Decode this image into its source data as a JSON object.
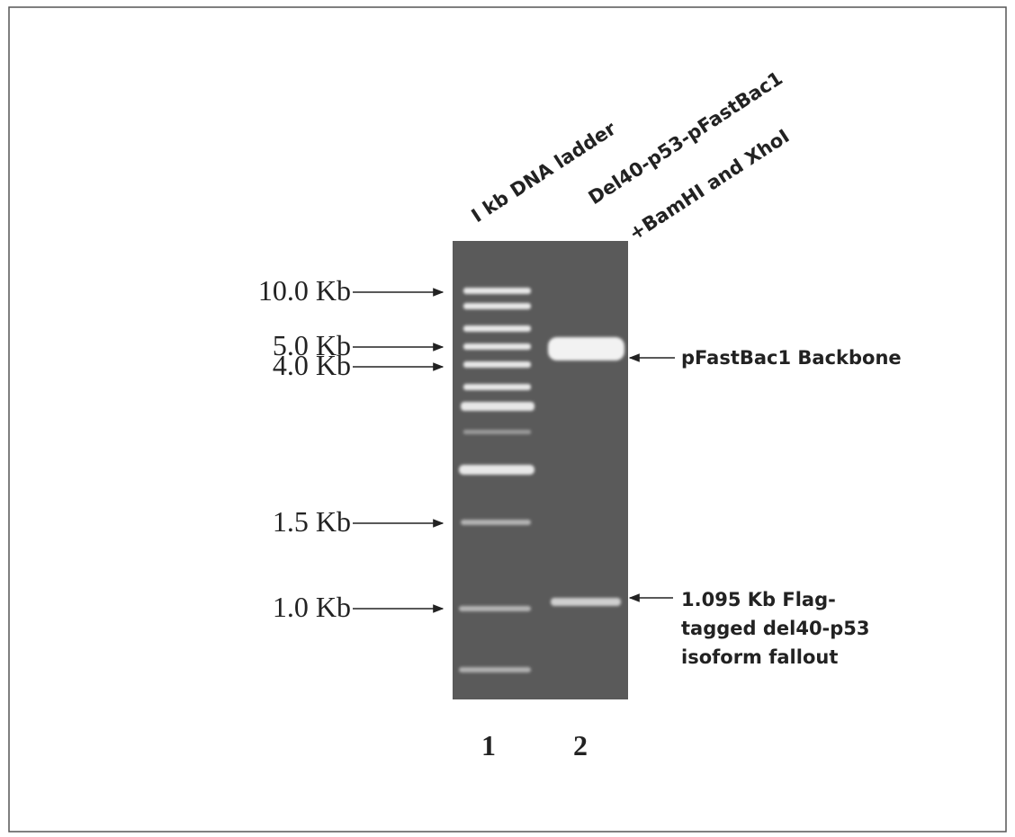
{
  "lane_labels": [
    "I kb DNA ladder",
    "Del40-p53-pFastBac1",
    "+BamHI and XhoI"
  ],
  "size_markers": [
    "10.0 Kb",
    "5.0 Kb",
    "4.0 Kb",
    "1.5 Kb",
    "1.0 Kb"
  ],
  "annotations": {
    "backbone": "pFastBac1 Backbone",
    "fallout": [
      "1.095 Kb Flag-",
      "tagged del40-p53",
      "isoform fallout"
    ]
  },
  "lane_numbers": [
    "1",
    "2"
  ]
}
